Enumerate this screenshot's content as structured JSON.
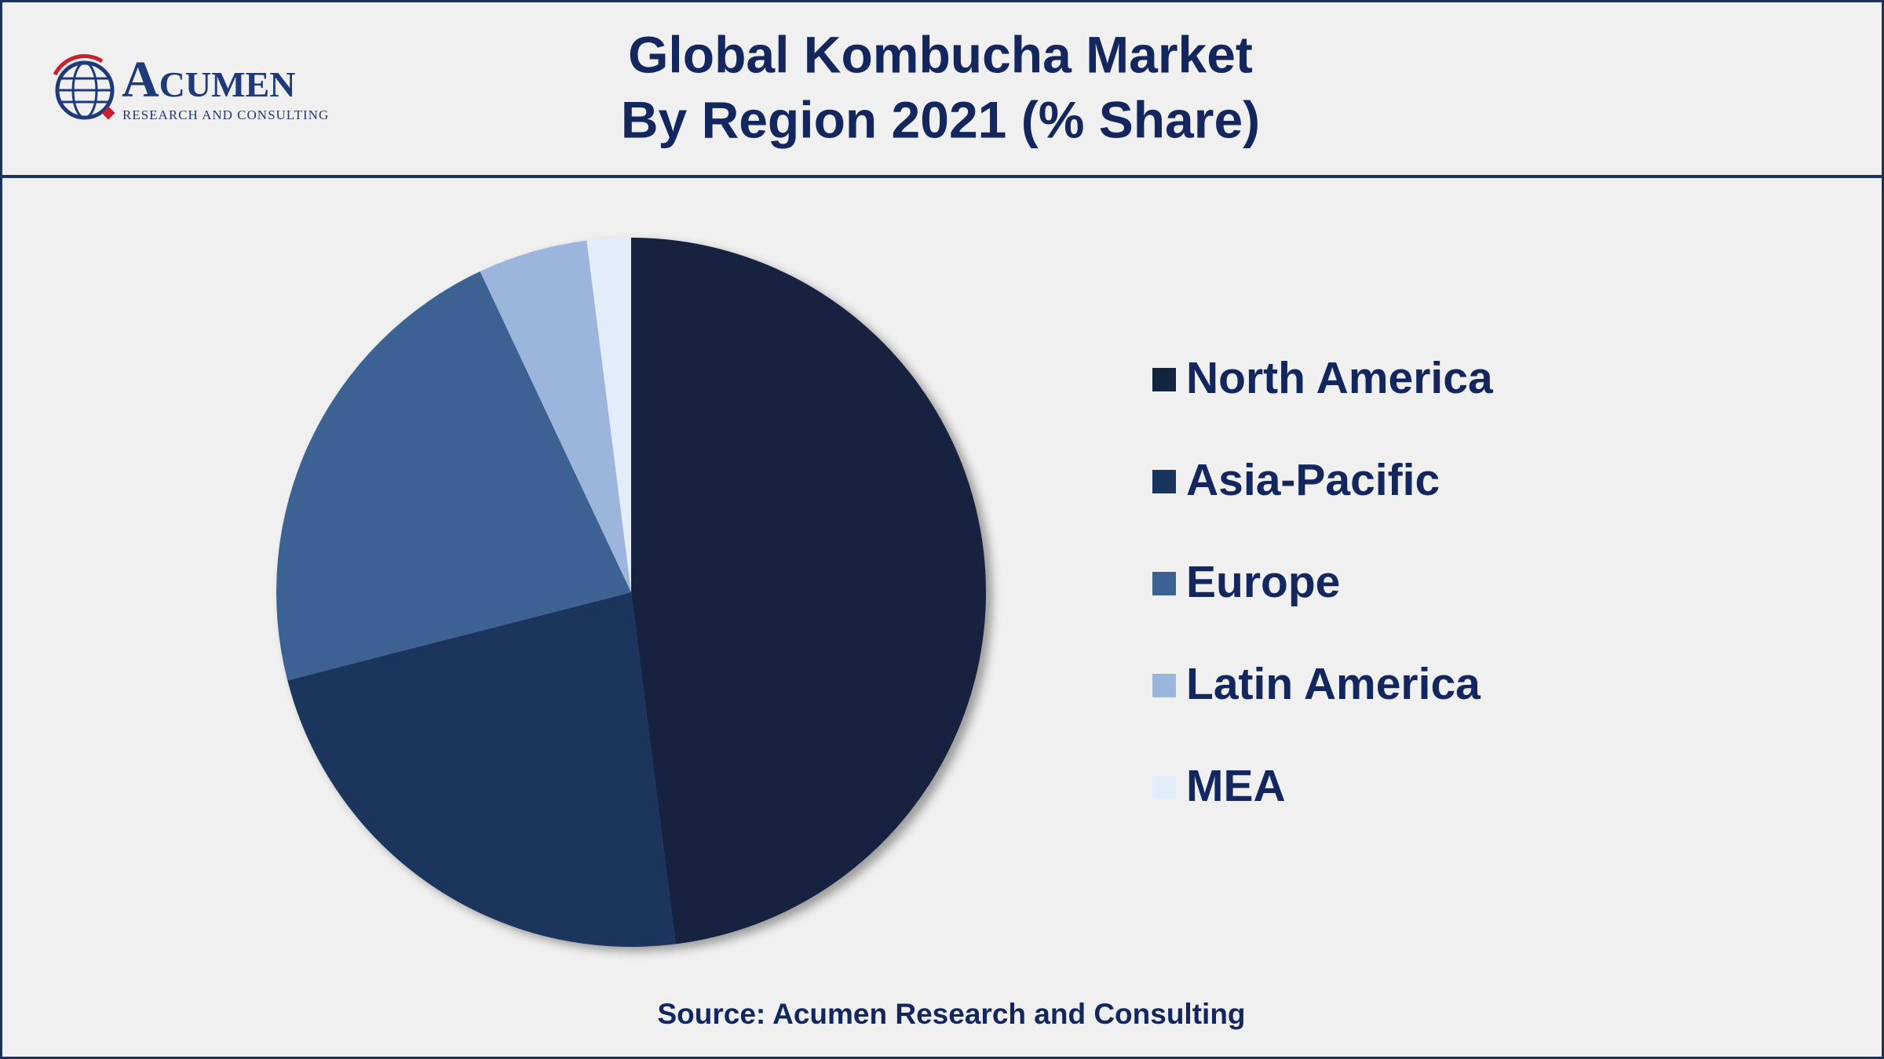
{
  "logo": {
    "name": "Acumen",
    "tagline": "RESEARCH AND CONSULTING"
  },
  "chart_data": {
    "type": "pie",
    "title": "Global Kombucha Market",
    "subtitle": "By Region 2021 (% Share)",
    "categories": [
      "North America",
      "Asia-Pacific",
      "Europe",
      "Latin America",
      "MEA"
    ],
    "values": [
      48,
      23,
      22,
      5,
      2
    ],
    "colors": [
      "#13243f",
      "#1a355d",
      "#3a6292",
      "#9bb5dc",
      "#e3edf9"
    ],
    "source": "Source: Acumen Research and Consulting"
  }
}
